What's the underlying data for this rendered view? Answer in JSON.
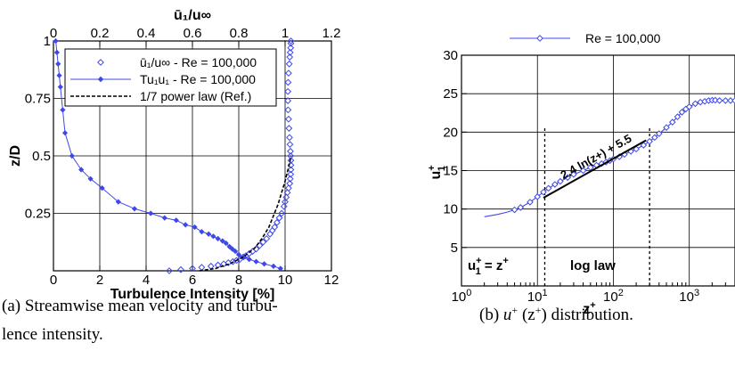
{
  "chart_data": [
    {
      "type": "scatter",
      "panel": "a",
      "caption": "(a) Streamwise mean velocity and turbulence intensity.",
      "caption_lines": [
        "(a) Streamwise mean velocity and turbu-",
        "lence intensity."
      ],
      "xlabel_bottom": "Turbulence Intensity [%]",
      "xlabel_top": "ū₁/u∞",
      "ylabel": "z/D",
      "xlim_bottom": [
        0,
        12
      ],
      "xlim_top": [
        0,
        1.2
      ],
      "ylim": [
        0,
        1
      ],
      "xticks_bottom": [
        "0",
        "2",
        "4",
        "6",
        "8",
        "10",
        "12"
      ],
      "xticks_top": [
        "0",
        "0.2",
        "0.4",
        "0.6",
        "0.8",
        "1",
        "1.2"
      ],
      "yticks": [
        "0.25",
        "0.5",
        "0.75",
        "1"
      ],
      "ytick_values": [
        0.25,
        0.5,
        0.75,
        1
      ],
      "grid": true,
      "legend_position": "top-right",
      "legend": [
        {
          "label": "ū₁/u∞ - Re = 100,000",
          "marker": "open-diamond"
        },
        {
          "label": "Tu₁u₁ - Re = 100,000",
          "marker": "filled-diamond-line"
        },
        {
          "label": "1/7 power law (Ref.)",
          "marker": "dashed-line"
        }
      ],
      "series": [
        {
          "axis": "top",
          "x": [
            0.5,
            0.55,
            0.6,
            0.64,
            0.68,
            0.71,
            0.735,
            0.755,
            0.775,
            0.79,
            0.805,
            0.82,
            0.83,
            0.845,
            0.86,
            0.875,
            0.89,
            0.905,
            0.92,
            0.935,
            0.945,
            0.955,
            0.965,
            0.975,
            0.985,
            0.995,
            1.0,
            1.005,
            1.01,
            1.015,
            1.02,
            1.022,
            1.024,
            1.025,
            1.025,
            1.025,
            1.024,
            1.023,
            1.021,
            1.019,
            1.017,
            1.015,
            1.013,
            1.012,
            1.012,
            1.013,
            1.015,
            1.018,
            1.02,
            1.022,
            1.024,
            1.025,
            1.025
          ],
          "y": [
            0.0,
            0.005,
            0.01,
            0.015,
            0.02,
            0.025,
            0.03,
            0.035,
            0.04,
            0.045,
            0.05,
            0.06,
            0.065,
            0.075,
            0.085,
            0.095,
            0.11,
            0.125,
            0.14,
            0.16,
            0.175,
            0.19,
            0.21,
            0.23,
            0.25,
            0.28,
            0.3,
            0.32,
            0.34,
            0.36,
            0.38,
            0.4,
            0.42,
            0.44,
            0.46,
            0.48,
            0.5,
            0.52,
            0.55,
            0.58,
            0.62,
            0.66,
            0.7,
            0.74,
            0.78,
            0.82,
            0.86,
            0.9,
            0.93,
            0.95,
            0.97,
            0.99,
            1.0
          ]
        },
        {
          "axis": "bottom",
          "x": [
            0.1,
            0.15,
            0.2,
            0.25,
            0.3,
            0.4,
            0.5,
            0.8,
            1.2,
            1.6,
            2.1,
            2.8,
            3.5,
            4.2,
            4.8,
            5.3,
            5.7,
            6.1,
            6.4,
            6.7,
            6.9,
            7.1,
            7.3,
            7.45,
            7.6,
            7.72,
            7.85,
            8.0,
            8.2,
            8.45,
            8.75,
            9.1,
            9.5,
            9.8
          ],
          "y": [
            1.0,
            0.95,
            0.9,
            0.85,
            0.8,
            0.7,
            0.6,
            0.5,
            0.44,
            0.4,
            0.36,
            0.3,
            0.27,
            0.25,
            0.23,
            0.22,
            0.2,
            0.19,
            0.17,
            0.16,
            0.15,
            0.14,
            0.13,
            0.12,
            0.105,
            0.095,
            0.085,
            0.07,
            0.06,
            0.05,
            0.04,
            0.03,
            0.02,
            0.01
          ]
        },
        {
          "axis": "top",
          "x": [
            0.63,
            0.7,
            0.76,
            0.82,
            0.87,
            0.9,
            0.93,
            0.95,
            0.97,
            0.985,
            1.0,
            1.01,
            1.02,
            1.025
          ],
          "y": [
            0.0,
            0.01,
            0.03,
            0.06,
            0.1,
            0.14,
            0.19,
            0.24,
            0.29,
            0.34,
            0.39,
            0.43,
            0.47,
            0.5
          ]
        }
      ]
    },
    {
      "type": "line",
      "panel": "b",
      "caption": "(b) u+ (z+) distribution.",
      "caption_prefix": "(b) ",
      "caption_math_base": "u",
      "caption_math_sup1": "+",
      "caption_math_mid": " (z",
      "caption_math_sup2": "+",
      "caption_math_end": ")",
      "caption_suffix": " distribution.",
      "xlabel": "z+",
      "xlabel_base": "z",
      "xlabel_sup": "+",
      "ylabel": "u1+",
      "ylabel_base": "u",
      "ylabel_sub": "1",
      "ylabel_sup": "+",
      "xscale": "log",
      "xlim": [
        1,
        4000
      ],
      "ylim": [
        0,
        30
      ],
      "xticks": [
        {
          "base": "10",
          "exp": "0",
          "value": 1
        },
        {
          "base": "10",
          "exp": "1",
          "value": 10
        },
        {
          "base": "10",
          "exp": "2",
          "value": 100
        },
        {
          "base": "10",
          "exp": "3",
          "value": 1000
        }
      ],
      "yticks": [
        "5",
        "10",
        "15",
        "20",
        "25",
        "30"
      ],
      "ytick_values": [
        5,
        10,
        15,
        20,
        25,
        30
      ],
      "grid": true,
      "legend_position": "top-center",
      "legend": [
        {
          "label": "Re = 100,000",
          "marker": "open-diamond-line"
        }
      ],
      "series": [
        {
          "name": "Re = 100,000",
          "x": [
            2,
            3,
            4,
            5,
            6,
            8,
            10,
            12,
            14,
            17,
            20,
            25,
            30,
            40,
            50,
            60,
            70,
            80,
            90,
            100,
            120,
            140,
            170,
            200,
            250,
            300,
            350,
            400,
            500,
            600,
            700,
            800,
            900,
            1000,
            1200,
            1400,
            1600,
            1800,
            2000,
            2200,
            2500,
            3000,
            3500,
            4000
          ],
          "y": [
            9.0,
            9.3,
            9.6,
            9.9,
            10.2,
            10.9,
            11.6,
            12.2,
            12.7,
            13.2,
            13.6,
            14.1,
            14.5,
            15.0,
            15.4,
            15.7,
            15.9,
            16.1,
            16.3,
            16.5,
            16.8,
            17.1,
            17.5,
            17.8,
            18.3,
            18.8,
            19.3,
            19.8,
            20.6,
            21.3,
            22.0,
            22.6,
            23.0,
            23.3,
            23.7,
            23.9,
            24.0,
            24.1,
            24.15,
            24.15,
            24.1,
            24.1,
            24.1,
            24.1
          ]
        }
      ],
      "fit_line": {
        "label": "2.4 ln(z+) + 5.5",
        "x": [
          12,
          270
        ]
      },
      "vlines": [
        12.5,
        300
      ],
      "annotations": {
        "viscous": "u1+ = z+",
        "viscous_base1": "u",
        "viscous_sup1": "+",
        "viscous_sub1": "1",
        "viscous_eq": " = z",
        "viscous_sup2": "+",
        "loglaw": "log law"
      }
    }
  ]
}
